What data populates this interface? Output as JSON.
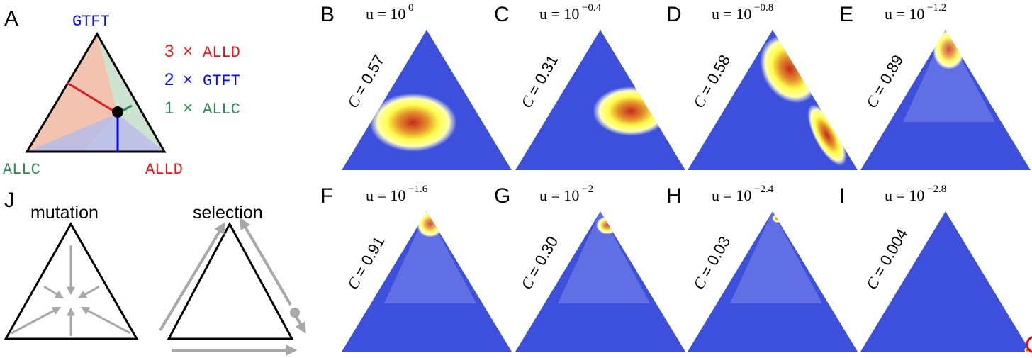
{
  "panel_a": {
    "label": "A",
    "corners": {
      "top": "GTFT",
      "left": "ALLC",
      "right": "ALLD"
    },
    "legend": [
      {
        "count": "3",
        "times": "×",
        "name": "ALLD",
        "color": "#e41a1c"
      },
      {
        "count": "2",
        "times": "×",
        "name": "GTFT",
        "color": "#0a0aff"
      },
      {
        "count": "1",
        "times": "×",
        "name": "ALLC",
        "color": "#2e8b57"
      }
    ],
    "region_colors": {
      "allc": "#f0b8a0",
      "alld": "#b8bde6",
      "gtft": "#c8e0cc"
    }
  },
  "density_panels": [
    {
      "label": "B",
      "u_base": "u = 10",
      "u_exp": "0",
      "c_text": "= 0.57",
      "peak": [
        0.42,
        0.34
      ],
      "spread": [
        0.16,
        0.13
      ],
      "tail": 0
    },
    {
      "label": "C",
      "u_base": "u = 10",
      "u_exp": "−0.4",
      "c_text": "= 0.31",
      "peak": [
        0.68,
        0.42
      ],
      "spread": [
        0.14,
        0.11
      ],
      "tail": 0
    },
    {
      "label": "D",
      "u_base": "u = 10",
      "u_exp": "−0.8",
      "c_text": "= 0.58",
      "peak": [
        0.6,
        0.72
      ],
      "spread": [
        0.1,
        0.16
      ],
      "tail": 1
    },
    {
      "label": "E",
      "u_base": "u = 10",
      "u_exp": "−1.2",
      "c_text": "= 0.89",
      "peak": [
        0.52,
        0.86
      ],
      "spread": [
        0.06,
        0.09
      ],
      "tail": 0
    },
    {
      "label": "F",
      "u_base": "u = 10",
      "u_exp": "−1.6",
      "c_text": "= 0.91",
      "peak": [
        0.52,
        0.91
      ],
      "spread": [
        0.05,
        0.06
      ],
      "tail": 0
    },
    {
      "label": "G",
      "u_base": "u = 10",
      "u_exp": "−2",
      "c_text": "= 0.30",
      "peak": [
        0.54,
        0.9
      ],
      "spread": [
        0.04,
        0.04
      ],
      "tail": 0
    },
    {
      "label": "H",
      "u_base": "u = 10",
      "u_exp": "−2.4",
      "c_text": "= 0.03",
      "peak": [
        0.53,
        0.95
      ],
      "spread": [
        0.02,
        0.02
      ],
      "tail": 0
    },
    {
      "label": "I",
      "u_base": "u = 10",
      "u_exp": "−2.8",
      "c_text": "= 0.004",
      "peak": [
        0.98,
        0.01
      ],
      "spread": [
        0.01,
        0.01
      ],
      "tail": 0
    }
  ],
  "c_symbol": "C",
  "panel_j": {
    "label": "J",
    "mutation_title": "mutation",
    "selection_title": "selection"
  },
  "colors": {
    "background_blue": "#3d50dd",
    "marker_circle": "#e8001c",
    "arrow_gray": "#a8a8a8"
  }
}
